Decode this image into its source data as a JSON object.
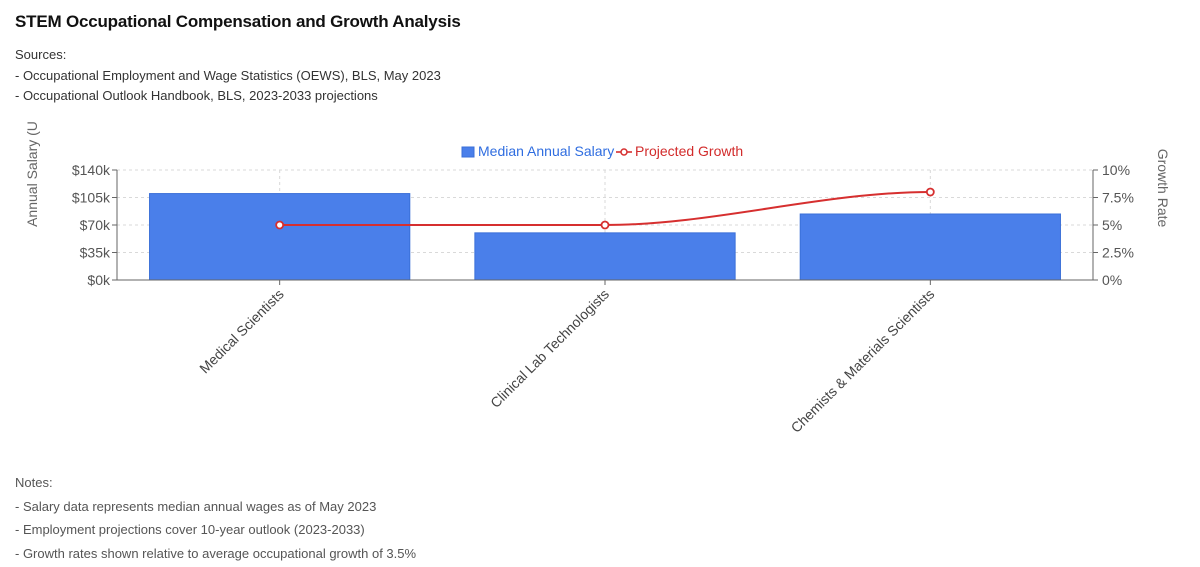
{
  "title": "STEM Occupational Compensation and Growth Analysis",
  "sources": {
    "heading": "Sources:",
    "items": [
      "- Occupational Employment and Wage Statistics (OEWS), BLS, May 2023",
      "- Occupational Outlook Handbook, BLS, 2023-2033 projections"
    ]
  },
  "notes": {
    "heading": "Notes:",
    "items": [
      "- Salary data represents median annual wages as of May 2023",
      "- Employment projections cover 10-year outlook (2023-2033)",
      "- Growth rates shown relative to average occupational growth of 3.5%"
    ]
  },
  "colors": {
    "bar": "#4a7fea",
    "bar_border": "#3a6fd8",
    "line": "#d62f2f",
    "grid": "#d9d9d9",
    "legend_salary": "#2f6de0",
    "legend_growth": "#d22b2b"
  },
  "chart_data": {
    "type": "bar",
    "categories": [
      "Medical Scientists",
      "Clinical Lab Technologists",
      "Chemists & Materials Scientists"
    ],
    "series": [
      {
        "name": "Median Annual Salary",
        "type": "bar",
        "axis": "left",
        "values": [
          110000,
          60000,
          84000
        ]
      },
      {
        "name": "Projected Growth",
        "type": "line",
        "axis": "right",
        "values": [
          5,
          5,
          8
        ]
      }
    ],
    "ylabel": "Annual Salary (U",
    "y2label": "Growth Rate",
    "ylim": [
      0,
      140000
    ],
    "y2lim": [
      0,
      10
    ],
    "yticks": [
      "$0k",
      "$35k",
      "$70k",
      "$105k",
      "$140k"
    ],
    "y2ticks": [
      "0%",
      "2.5%",
      "5%",
      "7.5%",
      "10%"
    ],
    "grid": true,
    "legend_position": "top-center"
  }
}
